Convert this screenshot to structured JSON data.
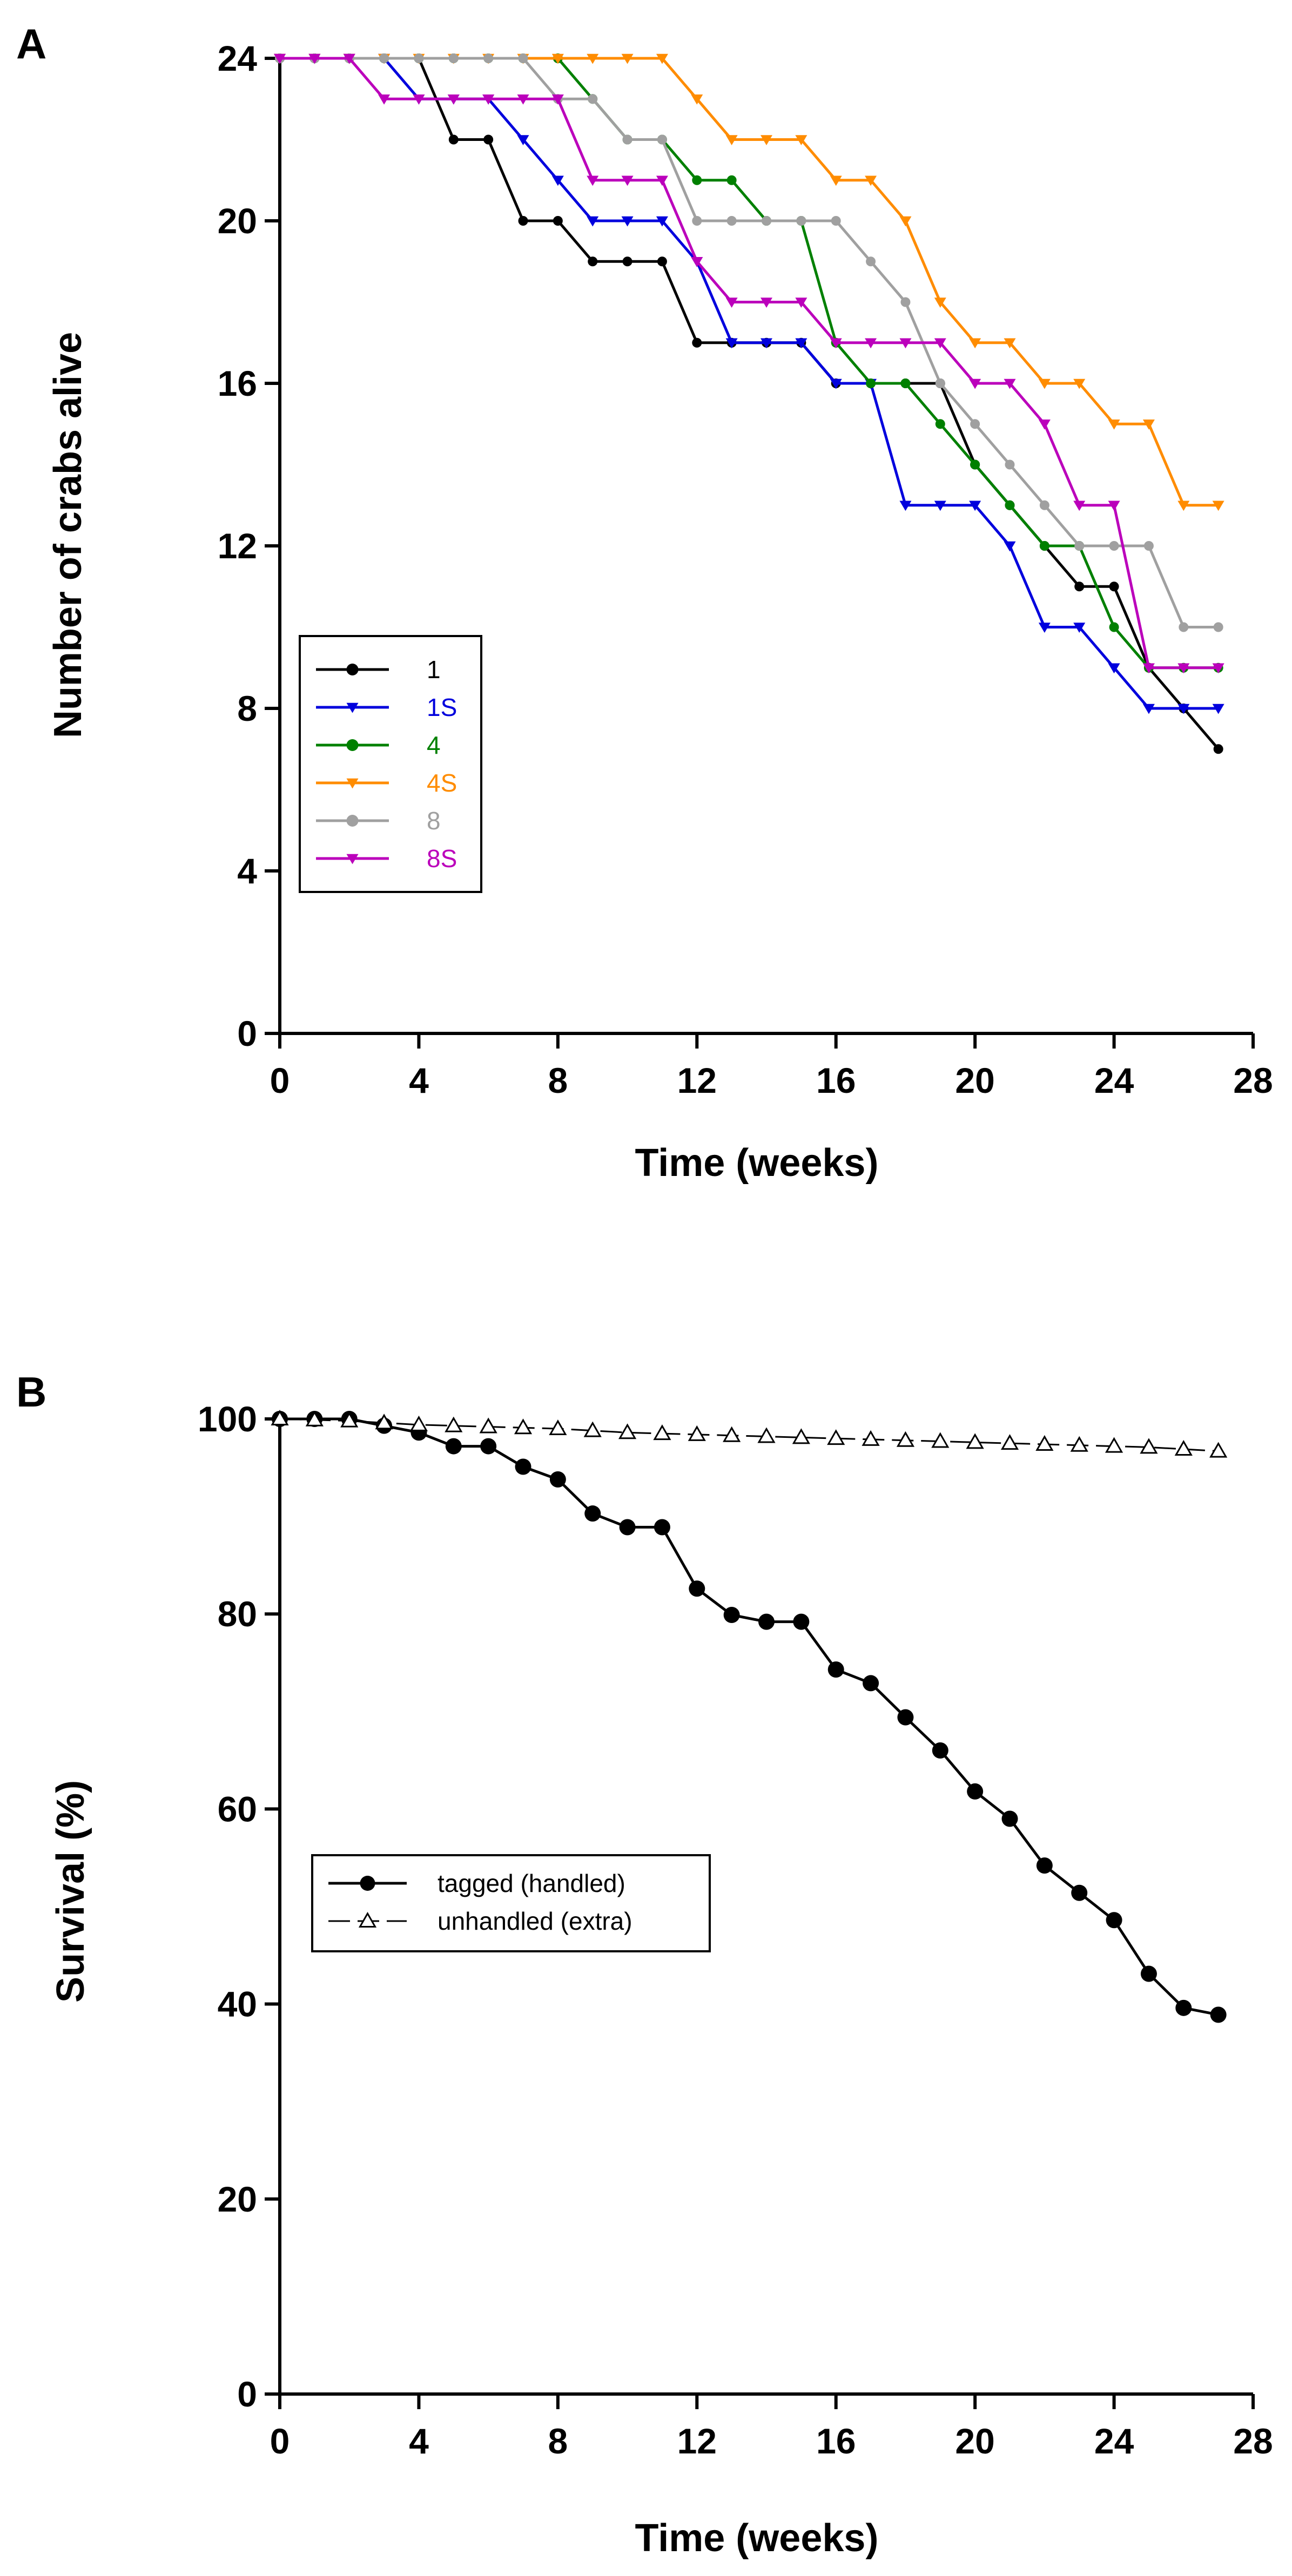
{
  "chart_data": [
    {
      "panel": "A",
      "type": "line",
      "xlabel": "Time (weeks)",
      "ylabel": "Number of crabs alive",
      "xlim": [
        0,
        28
      ],
      "ylim": [
        0,
        24
      ],
      "xticks": [
        "0",
        "4",
        "8",
        "12",
        "16",
        "20",
        "24",
        "28"
      ],
      "yticks": [
        "0",
        "4",
        "8",
        "12",
        "16",
        "20",
        "24"
      ],
      "grid": false,
      "legend_position": "center-left",
      "x": [
        0,
        1,
        2,
        3,
        4,
        5,
        6,
        7,
        8,
        9,
        10,
        11,
        12,
        13,
        14,
        15,
        16,
        17,
        18,
        19,
        20,
        21,
        22,
        23,
        24,
        25,
        26,
        27
      ],
      "series": [
        {
          "name": "1",
          "color": "#000000",
          "marker": "circle",
          "values": [
            24,
            24,
            24,
            24,
            24,
            22,
            22,
            20,
            20,
            19,
            19,
            19,
            17,
            17,
            17,
            17,
            16,
            16,
            16,
            16,
            14,
            13,
            12,
            11,
            11,
            9,
            8,
            7
          ]
        },
        {
          "name": "1S",
          "color": "#0000dd",
          "marker": "triangle-down",
          "values": [
            24,
            24,
            24,
            24,
            23,
            23,
            23,
            22,
            21,
            20,
            20,
            20,
            19,
            17,
            17,
            17,
            16,
            16,
            13,
            13,
            13,
            12,
            10,
            10,
            9,
            8,
            8,
            8
          ]
        },
        {
          "name": "4",
          "color": "#008000",
          "marker": "circle",
          "values": [
            24,
            24,
            24,
            24,
            24,
            24,
            24,
            24,
            24,
            23,
            22,
            22,
            21,
            21,
            20,
            20,
            17,
            16,
            16,
            15,
            14,
            13,
            12,
            12,
            10,
            9,
            9,
            9
          ]
        },
        {
          "name": "4S",
          "color": "#ff8c00",
          "marker": "triangle-down",
          "values": [
            24,
            24,
            24,
            24,
            24,
            24,
            24,
            24,
            24,
            24,
            24,
            24,
            23,
            22,
            22,
            22,
            21,
            21,
            20,
            18,
            17,
            17,
            16,
            16,
            15,
            15,
            13,
            13
          ]
        },
        {
          "name": "8",
          "color": "#a0a0a0",
          "marker": "circle",
          "values": [
            24,
            24,
            24,
            24,
            24,
            24,
            24,
            24,
            23,
            23,
            22,
            22,
            20,
            20,
            20,
            20,
            20,
            19,
            18,
            16,
            15,
            14,
            13,
            12,
            12,
            12,
            10,
            10
          ]
        },
        {
          "name": "8S",
          "color": "#bb00bb",
          "marker": "triangle-down",
          "values": [
            24,
            24,
            24,
            23,
            23,
            23,
            23,
            23,
            23,
            21,
            21,
            21,
            19,
            18,
            18,
            18,
            17,
            17,
            17,
            17,
            16,
            16,
            15,
            13,
            13,
            9,
            9,
            9
          ]
        }
      ]
    },
    {
      "panel": "B",
      "type": "line",
      "xlabel": "Time (weeks)",
      "ylabel": "Survival (%)",
      "xlim": [
        0,
        28
      ],
      "ylim": [
        0,
        100
      ],
      "xticks": [
        "0",
        "4",
        "8",
        "12",
        "16",
        "20",
        "24",
        "28"
      ],
      "yticks": [
        "0",
        "20",
        "40",
        "60",
        "80",
        "100"
      ],
      "grid": false,
      "legend_position": "center-left",
      "x": [
        0,
        1,
        2,
        3,
        4,
        5,
        6,
        7,
        8,
        9,
        10,
        11,
        12,
        13,
        14,
        15,
        16,
        17,
        18,
        19,
        20,
        21,
        22,
        23,
        24,
        25,
        26,
        27
      ],
      "series": [
        {
          "name": "tagged (handled)",
          "color": "#000000",
          "marker": "filled-circle",
          "dash": "solid",
          "values": [
            100,
            100,
            100,
            99.3,
            98.6,
            97.2,
            97.2,
            95.1,
            93.8,
            90.3,
            88.9,
            88.9,
            82.6,
            79.9,
            79.2,
            79.2,
            74.3,
            72.9,
            69.4,
            66,
            61.8,
            59,
            54.2,
            51.4,
            48.6,
            43.1,
            39.6,
            38.9
          ]
        },
        {
          "name": "unhandled (extra)",
          "color": "#000000",
          "marker": "open-triangle",
          "dash": "dashed",
          "values": [
            100,
            99.9,
            99.8,
            99.6,
            99.4,
            99.3,
            99.2,
            99.1,
            99,
            98.8,
            98.6,
            98.5,
            98.4,
            98.3,
            98.2,
            98.1,
            98,
            97.9,
            97.8,
            97.7,
            97.6,
            97.5,
            97.4,
            97.3,
            97.2,
            97.1,
            96.9,
            96.7
          ]
        }
      ]
    }
  ]
}
